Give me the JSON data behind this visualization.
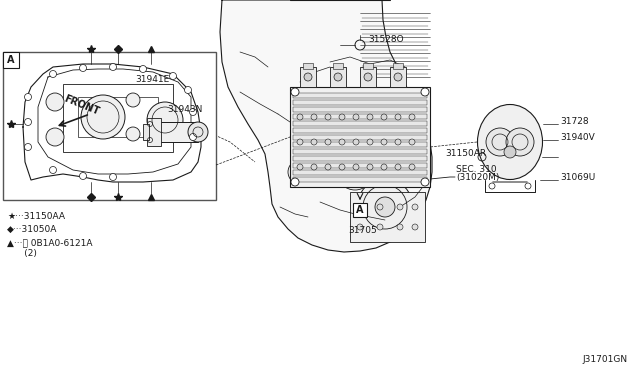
{
  "bg_color": "#ffffff",
  "diagram_id": "J31701GN",
  "line_color": "#1a1a1a",
  "text_color": "#1a1a1a",
  "sec310_label": "SEC. 310",
  "sec310_sub": "(31020M)",
  "p31943N": "31943N",
  "p31941E": "31941E",
  "p31528O": "31528O",
  "p31705": "31705",
  "p31069U": "31069U",
  "p31150AR": "31150AR",
  "p31940V": "31940V",
  "p31728": "31728",
  "legend1": "★···31150AA",
  "legend2": "◆···31050A",
  "legend3": "▲···Ⓑ 0B1A0-6121A",
  "legend3b": "      (2)",
  "front_label": "FRONT"
}
